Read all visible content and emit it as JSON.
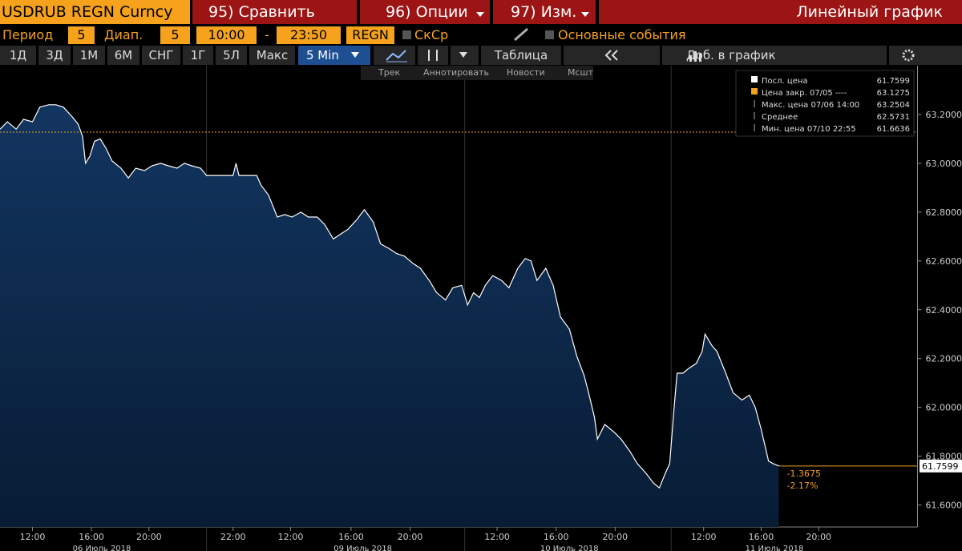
{
  "header": {
    "ticker": "USDRUB REGN Curncy",
    "menu": [
      "95) Сравнить",
      "96) Опции",
      "97) Изм."
    ],
    "chart_kind": "Линейный график"
  },
  "settings": {
    "period_label": "Период",
    "period": 5,
    "range_label": "Диап.",
    "range": 5,
    "from": "10:00",
    "dash": "-",
    "to": "23:50",
    "source": "REGN",
    "avg": "СкСр",
    "events": "Основные события"
  },
  "toolbar": {
    "ranges": [
      "1Д",
      "3Д",
      "1М",
      "6М",
      "СНГ",
      "1Г",
      "5Л",
      "Макс"
    ],
    "interval": "5 Min",
    "table": "Таблица",
    "add": "Доб. в график"
  },
  "chart_tools": [
    "Трек",
    "Аннотировать",
    "Новости",
    "Мсшт"
  ],
  "chart_data": {
    "type": "line",
    "x": [
      0,
      0.5,
      1.1,
      1.6,
      2.2,
      2.7,
      3.3,
      3.8,
      4.3,
      4.9,
      5.3,
      5.6,
      5.8,
      6.1,
      6.4,
      6.8,
      7.2,
      7.6,
      8.2,
      8.7,
      9.2,
      9.8,
      10.3,
      10.9,
      11.4,
      12.0,
      12.5,
      13.0,
      13.6,
      14.0,
      14.7,
      15.2,
      15.8,
      16.0,
      16.2,
      17.4,
      17.7,
      18.2,
      18.8,
      19.3,
      19.8,
      20.4,
      20.9,
      21.5,
      22.0,
      22.6,
      23.1,
      23.6,
      24.2,
      24.7,
      25.3,
      25.8,
      26.4,
      26.9,
      27.4,
      28.0,
      28.5,
      29.1,
      29.6,
      30.2,
      30.7,
      31.3,
      31.7,
      32.1,
      32.5,
      32.9,
      33.4,
      34.0,
      34.5,
      35.1,
      35.6,
      36.0,
      36.4,
      37.0,
      37.5,
      38.0,
      38.6,
      39.1,
      39.6,
      39.9,
      40.3,
      40.5,
      41.0,
      41.6,
      42.1,
      42.7,
      43.2,
      43.8,
      44.3,
      44.7,
      45.1,
      45.4,
      45.7,
      45.9,
      46.3,
      46.7,
      47.2,
      47.6,
      47.8,
      48.3,
      48.6,
      49.2,
      49.7,
      50.3,
      50.8,
      51.2,
      51.6,
      52.1,
      52.4,
      52.8
    ],
    "series": [
      {
        "name": "Посл. цена",
        "color": "#ffffff",
        "fill": "#0c2848",
        "values": [
          63.14,
          63.17,
          63.14,
          63.18,
          63.17,
          63.23,
          63.24,
          63.24,
          63.23,
          63.19,
          63.16,
          63.11,
          63.0,
          63.03,
          63.09,
          63.1,
          63.06,
          63.01,
          62.98,
          62.94,
          62.98,
          62.97,
          62.99,
          63.0,
          62.99,
          62.98,
          63.0,
          62.99,
          62.98,
          62.95,
          62.95,
          62.95,
          62.95,
          63.0,
          62.95,
          62.95,
          62.91,
          62.87,
          62.78,
          62.79,
          62.78,
          62.8,
          62.78,
          62.78,
          62.75,
          62.69,
          62.71,
          62.73,
          62.77,
          62.81,
          62.76,
          62.67,
          62.65,
          62.63,
          62.62,
          62.59,
          62.57,
          62.52,
          62.47,
          62.44,
          62.49,
          62.5,
          62.42,
          62.47,
          62.45,
          62.5,
          62.54,
          62.52,
          62.49,
          62.57,
          62.61,
          62.6,
          62.52,
          62.57,
          62.5,
          62.37,
          62.32,
          62.21,
          62.13,
          62.06,
          61.96,
          61.87,
          61.93,
          61.9,
          61.87,
          61.82,
          61.77,
          61.73,
          61.69,
          61.67,
          61.73,
          61.77,
          62.0,
          62.14,
          62.14,
          62.16,
          62.18,
          62.23,
          62.3,
          62.25,
          62.23,
          62.14,
          62.06,
          62.03,
          62.05,
          62.0,
          61.91,
          61.78,
          61.77,
          61.76
        ]
      }
    ],
    "xlim": [
      0,
      62.2
    ],
    "xticks": [
      {
        "value": 2.2,
        "label": "12:00"
      },
      {
        "value": 6.2,
        "label": "16:00"
      },
      {
        "value": 10.1,
        "label": "20:00"
      },
      {
        "value": 15.8,
        "label": "22:00"
      },
      {
        "value": 19.7,
        "label": "12:00"
      },
      {
        "value": 23.8,
        "label": "16:00"
      },
      {
        "value": 27.8,
        "label": "20:00"
      },
      {
        "value": 33.7,
        "label": "12:00"
      },
      {
        "value": 37.7,
        "label": "16:00"
      },
      {
        "value": 41.7,
        "label": "20:00"
      },
      {
        "value": 47.7,
        "label": "12:00"
      },
      {
        "value": 51.6,
        "label": "16:00"
      },
      {
        "value": 55.5,
        "label": "20:00"
      }
    ],
    "date_ticks": [
      {
        "value": 6.9,
        "label": "06 Июль 2018"
      },
      {
        "value": 24.6,
        "label": "09 Июль 2018"
      },
      {
        "value": 38.6,
        "label": "10 Июль 2018"
      },
      {
        "value": 52.5,
        "label": "11 Июль 2018"
      }
    ],
    "day_breaks": [
      14.0,
      31.5,
      45.5
    ],
    "ylim": [
      61.51,
      63.4
    ],
    "yticks": [
      {
        "value": 61.6,
        "label": "61.6000"
      },
      {
        "value": 61.8,
        "label": "61.8000"
      },
      {
        "value": 62.0,
        "label": "62.0000"
      },
      {
        "value": 62.2,
        "label": "62.2000"
      },
      {
        "value": 62.4,
        "label": "62.4000"
      },
      {
        "value": 62.6,
        "label": "62.6000"
      },
      {
        "value": 62.8,
        "label": "62.8000"
      },
      {
        "value": 63.0,
        "label": "63.0000"
      },
      {
        "value": 63.2,
        "label": "63.2000"
      }
    ],
    "legend": [
      {
        "name": "Посл. цена",
        "value": 61.7599
      },
      {
        "name": "Цена закр. 07/05 ----",
        "value": 63.1275
      },
      {
        "name": "Макс. цена 07/06 14:00",
        "value": 63.2504
      },
      {
        "name": "Среднее",
        "value": 62.5731
      },
      {
        "name": "Мин. цена 07/10 22:55",
        "value": 61.6636
      }
    ],
    "reference_color": "#f0a020",
    "change": {
      "values": [
        -1.3675,
        -2.17
      ],
      "value_labels": [
        "-1.3675",
        "-2.17%"
      ]
    }
  }
}
